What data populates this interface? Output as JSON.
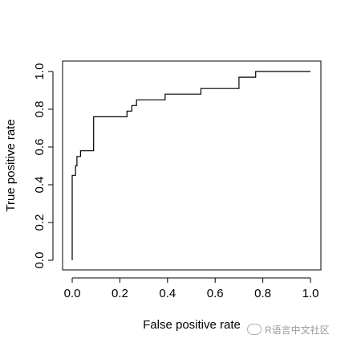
{
  "chart_data": {
    "type": "line",
    "xlabel": "False positive rate",
    "ylabel": "True positive rate",
    "xlim": [
      0,
      1
    ],
    "ylim": [
      0,
      1
    ],
    "x_ticks": [
      "0.0",
      "0.2",
      "0.4",
      "0.6",
      "0.8",
      "1.0"
    ],
    "y_ticks": [
      "0.0",
      "0.2",
      "0.4",
      "0.6",
      "0.8",
      "1.0"
    ],
    "grid": false,
    "series": [
      {
        "x": [
          0,
          0,
          0.014,
          0.014,
          0.02,
          0.02,
          0.035,
          0.035,
          0.09,
          0.09,
          0.23,
          0.23,
          0.25,
          0.25,
          0.27,
          0.27,
          0.39,
          0.39,
          0.54,
          0.54,
          0.7,
          0.7,
          0.77,
          0.77,
          1.0
        ],
        "y": [
          0,
          0.45,
          0.45,
          0.5,
          0.5,
          0.55,
          0.55,
          0.58,
          0.58,
          0.76,
          0.76,
          0.79,
          0.79,
          0.82,
          0.82,
          0.85,
          0.85,
          0.88,
          0.88,
          0.91,
          0.91,
          0.97,
          0.97,
          1.0,
          1.0
        ],
        "color": "#000000"
      }
    ]
  },
  "watermark": {
    "text": "R语言中文社区"
  }
}
